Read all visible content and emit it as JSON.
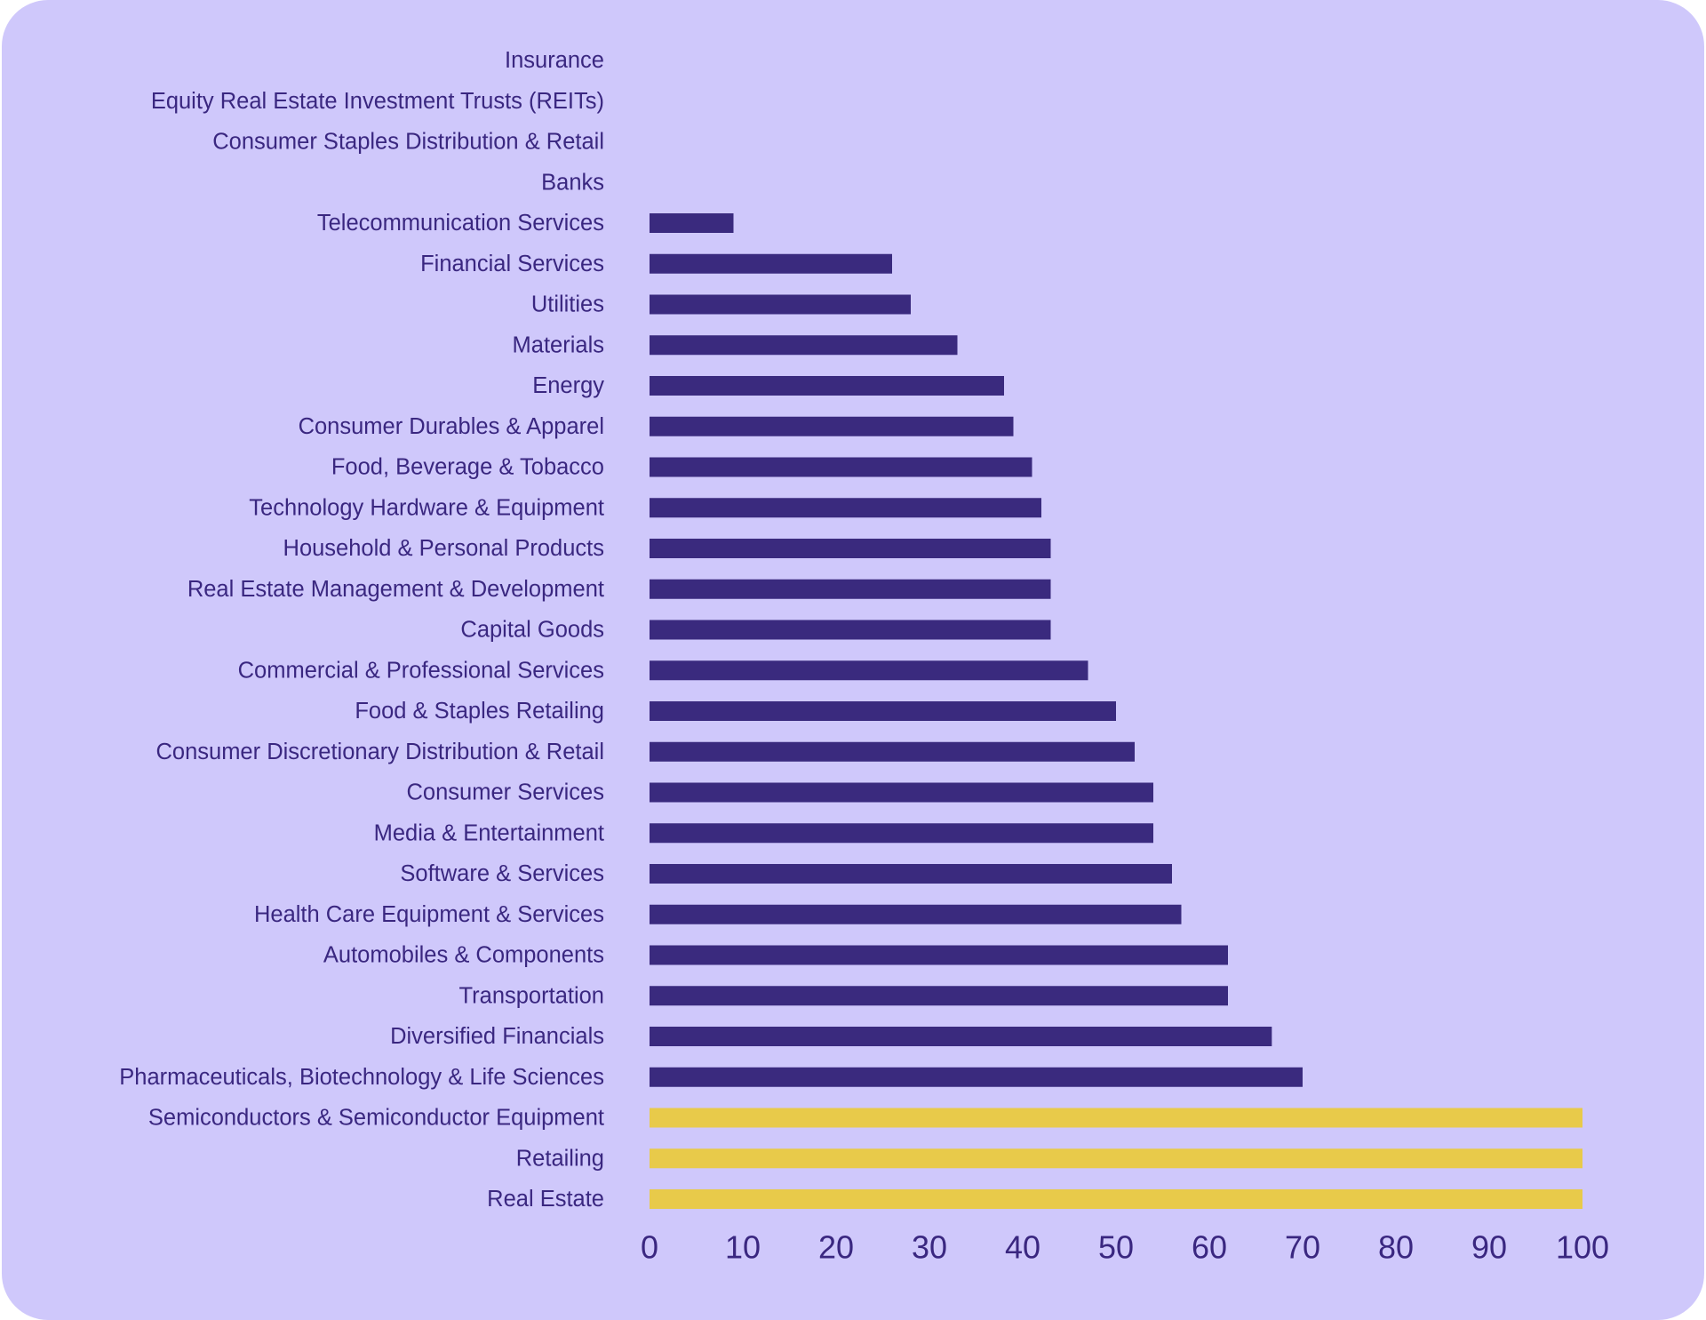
{
  "colors": {
    "background": "#cfc8fb",
    "bar": "#3a2a7e",
    "highlight_bar": "#e8ca4a",
    "text": "#3a2780"
  },
  "chart_data": {
    "type": "bar",
    "orientation": "horizontal",
    "title": "",
    "xlabel": "",
    "ylabel": "",
    "xlim": [
      0,
      100
    ],
    "xticks": [
      0,
      10,
      20,
      30,
      40,
      50,
      60,
      70,
      80,
      90,
      100
    ],
    "grid": false,
    "legend": "none",
    "categories": [
      "Insurance",
      "Equity Real Estate Investment Trusts (REITs)",
      "Consumer Staples Distribution & Retail",
      "Banks",
      "Telecommunication Services",
      "Financial Services",
      "Utilities",
      "Materials",
      "Energy",
      "Consumer Durables & Apparel",
      "Food, Beverage & Tobacco",
      "Technology Hardware & Equipment",
      "Household & Personal Products",
      "Real Estate Management & Development",
      "Capital Goods",
      "Commercial & Professional Services",
      "Food & Staples Retailing",
      "Consumer Discretionary Distribution & Retail",
      "Consumer Services",
      "Media & Entertainment",
      "Software & Services",
      "Health Care Equipment & Services",
      "Automobiles & Components",
      "Transportation",
      "Diversified Financials",
      "Pharmaceuticals, Biotechnology & Life Sciences",
      "Semiconductors & Semiconductor Equipment",
      "Retailing",
      "Real Estate"
    ],
    "values": [
      0,
      0,
      0,
      0,
      9,
      26,
      28,
      33,
      38,
      39,
      41,
      42,
      43,
      43,
      43,
      47,
      50,
      52,
      54,
      54,
      56,
      57,
      62,
      62,
      66.7,
      70,
      100,
      100,
      100
    ],
    "highlighted": [
      false,
      false,
      false,
      false,
      false,
      false,
      false,
      false,
      false,
      false,
      false,
      false,
      false,
      false,
      false,
      false,
      false,
      false,
      false,
      false,
      false,
      false,
      false,
      false,
      false,
      false,
      true,
      true,
      true
    ]
  }
}
